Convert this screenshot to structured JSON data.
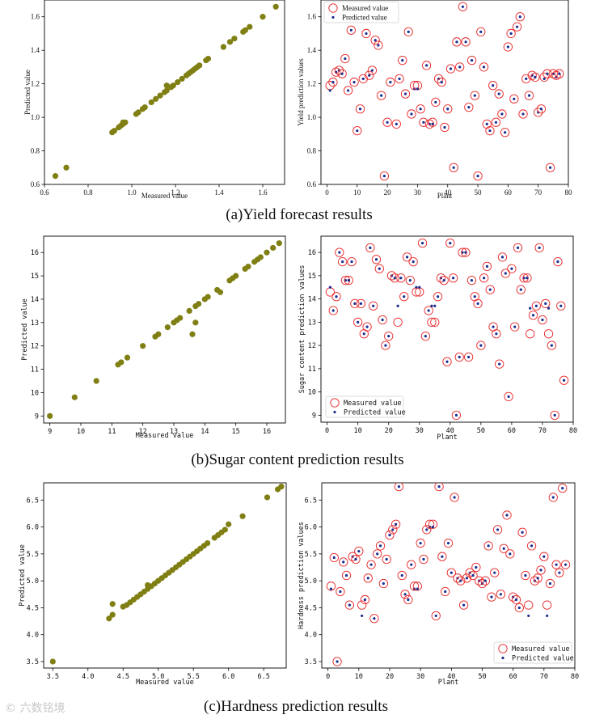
{
  "captions": {
    "a": "(a)Yield forecast results",
    "b": "(b)Sugar content prediction results",
    "c": "(c)Hardness prediction results"
  },
  "watermark": "© 六数铭境",
  "colors": {
    "scatter": "#7f7f14",
    "measured_ring": "#e8272a",
    "predicted_dot": "#1c2b8f",
    "frame": "#000000"
  },
  "chart_data": [
    {
      "id": "a-left",
      "type": "scatter",
      "title": "",
      "xlabel": "Measured value",
      "ylabel": "Predicted value",
      "xlim": [
        0.6,
        1.7
      ],
      "ylim": [
        0.6,
        1.7
      ],
      "xticks": [
        "0.6",
        "0.8",
        "1.0",
        "1.2",
        "1.4",
        "1.6"
      ],
      "yticks": [
        "0.6",
        "0.8",
        "1.0",
        "1.2",
        "1.4",
        "1.6"
      ],
      "points": [
        [
          0.65,
          0.65
        ],
        [
          0.7,
          0.7
        ],
        [
          0.91,
          0.91
        ],
        [
          0.92,
          0.92
        ],
        [
          0.94,
          0.94
        ],
        [
          0.95,
          0.95
        ],
        [
          0.96,
          0.96
        ],
        [
          0.96,
          0.97
        ],
        [
          0.97,
          0.97
        ],
        [
          1.02,
          1.02
        ],
        [
          1.03,
          1.03
        ],
        [
          1.05,
          1.05
        ],
        [
          1.06,
          1.06
        ],
        [
          1.09,
          1.09
        ],
        [
          1.11,
          1.11
        ],
        [
          1.13,
          1.13
        ],
        [
          1.15,
          1.15
        ],
        [
          1.16,
          1.16
        ],
        [
          1.16,
          1.19
        ],
        [
          1.18,
          1.18
        ],
        [
          1.19,
          1.19
        ],
        [
          1.21,
          1.21
        ],
        [
          1.23,
          1.23
        ],
        [
          1.25,
          1.25
        ],
        [
          1.26,
          1.26
        ],
        [
          1.27,
          1.27
        ],
        [
          1.28,
          1.28
        ],
        [
          1.29,
          1.29
        ],
        [
          1.3,
          1.3
        ],
        [
          1.31,
          1.31
        ],
        [
          1.34,
          1.34
        ],
        [
          1.35,
          1.35
        ],
        [
          1.42,
          1.42
        ],
        [
          1.45,
          1.45
        ],
        [
          1.47,
          1.47
        ],
        [
          1.51,
          1.51
        ],
        [
          1.52,
          1.52
        ],
        [
          1.54,
          1.54
        ],
        [
          1.6,
          1.6
        ],
        [
          1.66,
          1.66
        ]
      ]
    },
    {
      "id": "a-right",
      "type": "scatter",
      "title": "",
      "xlabel": "Plant",
      "ylabel": "Yield prediction values",
      "xlim": [
        -2,
        80
      ],
      "ylim": [
        0.6,
        1.7
      ],
      "xticks": [
        "0",
        "10",
        "20",
        "30",
        "40",
        "50",
        "60",
        "70",
        "80"
      ],
      "yticks": [
        "0.6",
        "0.8",
        "1.0",
        "1.2",
        "1.4",
        "1.6"
      ],
      "legend": [
        "Measured value",
        "Predicted value"
      ],
      "legend_position": "top-left",
      "x": [
        1,
        2,
        3,
        4,
        5,
        6,
        7,
        8,
        9,
        10,
        11,
        12,
        13,
        14,
        15,
        16,
        17,
        18,
        19,
        20,
        21,
        22,
        23,
        24,
        25,
        26,
        27,
        28,
        29,
        30,
        31,
        32,
        33,
        34,
        35,
        36,
        37,
        38,
        39,
        40,
        41,
        42,
        43,
        44,
        45,
        46,
        47,
        48,
        49,
        50,
        51,
        52,
        53,
        54,
        55,
        56,
        57,
        58,
        59,
        60,
        61,
        62,
        63,
        64,
        65,
        66,
        67,
        68,
        69,
        70,
        71,
        72,
        73,
        74,
        75,
        76,
        77
      ],
      "measured": [
        1.19,
        1.21,
        1.27,
        1.28,
        1.26,
        1.35,
        1.16,
        1.52,
        1.21,
        0.92,
        1.05,
        1.23,
        1.5,
        1.25,
        1.28,
        1.46,
        1.43,
        1.13,
        0.65,
        0.97,
        1.21,
        1.6,
        0.96,
        1.23,
        1.34,
        1.14,
        1.51,
        1.02,
        1.19,
        1.19,
        1.05,
        0.97,
        1.31,
        0.96,
        0.97,
        1.09,
        1.23,
        1.21,
        0.94,
        1.05,
        1.29,
        0.7,
        1.45,
        1.3,
        1.66,
        1.45,
        1.06,
        1.34,
        1.13,
        0.65,
        1.51,
        1.3,
        0.96,
        0.92,
        1.19,
        0.97,
        1.14,
        1.02,
        0.91,
        1.42,
        1.5,
        1.11,
        1.54,
        1.6,
        1.02,
        1.23,
        1.13,
        1.25,
        1.24,
        1.03,
        1.05,
        1.24,
        1.26,
        0.7,
        1.26,
        1.25,
        1.26
      ],
      "predicted": [
        1.16,
        1.21,
        1.27,
        1.28,
        1.26,
        1.35,
        1.16,
        1.52,
        1.21,
        0.92,
        1.05,
        1.23,
        1.5,
        1.25,
        1.28,
        1.46,
        1.43,
        1.13,
        0.65,
        0.97,
        1.21,
        1.6,
        0.96,
        1.23,
        1.34,
        1.14,
        1.51,
        1.02,
        1.17,
        1.17,
        1.05,
        0.97,
        1.31,
        0.96,
        0.96,
        1.09,
        1.23,
        1.21,
        0.94,
        1.05,
        1.29,
        0.7,
        1.45,
        1.3,
        1.66,
        1.45,
        1.06,
        1.34,
        1.13,
        0.65,
        1.51,
        1.3,
        0.96,
        0.92,
        1.19,
        0.97,
        1.14,
        1.02,
        0.91,
        1.42,
        1.5,
        1.11,
        1.54,
        1.6,
        1.02,
        1.23,
        1.13,
        1.25,
        1.24,
        1.03,
        1.05,
        1.23,
        1.26,
        0.7,
        1.26,
        1.24,
        1.26
      ]
    },
    {
      "id": "b-left",
      "type": "scatter",
      "title": "",
      "xlabel": "Measured value",
      "ylabel": "Predicted value",
      "xlim": [
        8.8,
        16.6
      ],
      "ylim": [
        8.7,
        16.7
      ],
      "xticks": [
        "9",
        "10",
        "11",
        "12",
        "13",
        "14",
        "15",
        "16"
      ],
      "yticks": [
        "9",
        "10",
        "11",
        "12",
        "13",
        "14",
        "15",
        "16"
      ],
      "points": [
        [
          9.0,
          9.0
        ],
        [
          9.8,
          9.8
        ],
        [
          10.5,
          10.5
        ],
        [
          11.2,
          11.2
        ],
        [
          11.3,
          11.3
        ],
        [
          11.5,
          11.5
        ],
        [
          12.0,
          12.0
        ],
        [
          12.4,
          12.4
        ],
        [
          12.5,
          12.5
        ],
        [
          12.8,
          12.8
        ],
        [
          13.0,
          13.0
        ],
        [
          13.1,
          13.1
        ],
        [
          13.2,
          13.2
        ],
        [
          13.5,
          13.5
        ],
        [
          13.6,
          12.5
        ],
        [
          13.7,
          13.0
        ],
        [
          13.7,
          13.7
        ],
        [
          13.8,
          13.8
        ],
        [
          14.0,
          14.0
        ],
        [
          14.1,
          14.1
        ],
        [
          14.4,
          14.4
        ],
        [
          14.5,
          14.3
        ],
        [
          14.8,
          14.8
        ],
        [
          14.9,
          14.9
        ],
        [
          15.0,
          15.0
        ],
        [
          15.3,
          15.3
        ],
        [
          15.4,
          15.4
        ],
        [
          15.6,
          15.6
        ],
        [
          15.7,
          15.7
        ],
        [
          15.8,
          15.8
        ],
        [
          16.0,
          16.0
        ],
        [
          16.2,
          16.2
        ],
        [
          16.4,
          16.4
        ]
      ]
    },
    {
      "id": "b-right",
      "type": "scatter",
      "title": "",
      "xlabel": "Plant",
      "ylabel": "Sugar content prediction values",
      "xlim": [
        -2,
        80
      ],
      "ylim": [
        8.7,
        16.7
      ],
      "xticks": [
        "0",
        "10",
        "20",
        "30",
        "40",
        "50",
        "60",
        "70",
        "80"
      ],
      "yticks": [
        "9",
        "10",
        "11",
        "12",
        "13",
        "14",
        "15",
        "16"
      ],
      "legend": [
        "Measured value",
        "Predicted value"
      ],
      "legend_position": "bottom-left",
      "x": [
        1,
        2,
        3,
        4,
        5,
        6,
        7,
        8,
        9,
        10,
        11,
        12,
        13,
        14,
        15,
        16,
        17,
        18,
        19,
        20,
        21,
        22,
        23,
        24,
        25,
        26,
        27,
        28,
        29,
        30,
        31,
        32,
        33,
        34,
        35,
        36,
        37,
        38,
        39,
        40,
        41,
        42,
        43,
        44,
        45,
        46,
        47,
        48,
        49,
        50,
        51,
        52,
        53,
        54,
        55,
        56,
        57,
        58,
        59,
        60,
        61,
        62,
        63,
        64,
        65,
        66,
        67,
        68,
        69,
        70,
        71,
        72,
        73,
        74,
        75,
        76,
        77
      ],
      "measured": [
        14.3,
        13.5,
        14.1,
        16.0,
        15.6,
        14.8,
        14.8,
        15.6,
        13.8,
        13.0,
        13.8,
        12.5,
        12.8,
        16.2,
        13.7,
        15.7,
        15.3,
        13.1,
        12.0,
        12.4,
        15.0,
        14.9,
        13.0,
        14.9,
        14.1,
        15.8,
        14.8,
        15.6,
        14.3,
        14.3,
        16.4,
        12.4,
        13.5,
        13.0,
        13.0,
        14.1,
        14.9,
        14.8,
        11.3,
        16.4,
        14.9,
        9.0,
        11.5,
        16.0,
        16.0,
        11.5,
        14.8,
        14.1,
        13.8,
        12.0,
        14.9,
        15.4,
        14.4,
        12.8,
        12.5,
        11.2,
        15.8,
        15.1,
        9.8,
        15.3,
        12.8,
        16.2,
        14.4,
        14.9,
        14.9,
        12.5,
        13.3,
        13.7,
        16.2,
        13.1,
        13.8,
        12.5,
        12.0,
        9.0,
        15.6,
        13.7,
        10.5
      ],
      "predicted": [
        14.5,
        13.5,
        14.1,
        16.0,
        15.6,
        14.8,
        14.8,
        15.6,
        13.8,
        13.0,
        13.8,
        12.5,
        12.8,
        16.2,
        13.7,
        15.7,
        15.3,
        13.1,
        12.0,
        12.4,
        15.0,
        14.9,
        13.7,
        14.9,
        14.1,
        15.8,
        14.8,
        15.6,
        14.5,
        14.5,
        16.4,
        12.4,
        13.5,
        13.7,
        13.7,
        14.1,
        14.9,
        14.8,
        11.3,
        16.4,
        14.9,
        9.0,
        11.5,
        16.0,
        16.0,
        11.5,
        14.8,
        14.1,
        13.8,
        12.0,
        14.9,
        15.4,
        14.4,
        12.8,
        12.5,
        11.2,
        15.8,
        15.1,
        9.8,
        15.3,
        12.8,
        16.2,
        14.4,
        14.9,
        14.9,
        13.6,
        13.3,
        13.7,
        16.2,
        13.1,
        13.8,
        13.6,
        12.0,
        9.0,
        15.6,
        13.7,
        10.5
      ]
    },
    {
      "id": "c-left",
      "type": "scatter",
      "title": "",
      "xlabel": "Measured value",
      "ylabel": "Predicted value",
      "xlim": [
        3.37,
        6.82
      ],
      "ylim": [
        3.38,
        6.82
      ],
      "xticks": [
        "3.5",
        "4.0",
        "4.5",
        "5.0",
        "5.5",
        "6.0",
        "6.5"
      ],
      "yticks": [
        "3.5",
        "4.0",
        "4.5",
        "5.0",
        "5.5",
        "6.0",
        "6.5"
      ],
      "points": [
        [
          3.5,
          3.5
        ],
        [
          4.3,
          4.3
        ],
        [
          4.35,
          4.37
        ],
        [
          4.35,
          4.57
        ],
        [
          4.5,
          4.52
        ],
        [
          4.55,
          4.55
        ],
        [
          4.6,
          4.6
        ],
        [
          4.65,
          4.65
        ],
        [
          4.7,
          4.7
        ],
        [
          4.75,
          4.75
        ],
        [
          4.8,
          4.8
        ],
        [
          4.85,
          4.85
        ],
        [
          4.85,
          4.92
        ],
        [
          4.9,
          4.9
        ],
        [
          4.95,
          4.95
        ],
        [
          5.0,
          5.0
        ],
        [
          5.05,
          5.05
        ],
        [
          5.1,
          5.1
        ],
        [
          5.15,
          5.15
        ],
        [
          5.2,
          5.2
        ],
        [
          5.25,
          5.25
        ],
        [
          5.3,
          5.3
        ],
        [
          5.35,
          5.35
        ],
        [
          5.4,
          5.4
        ],
        [
          5.45,
          5.45
        ],
        [
          5.5,
          5.5
        ],
        [
          5.55,
          5.55
        ],
        [
          5.6,
          5.6
        ],
        [
          5.65,
          5.65
        ],
        [
          5.7,
          5.7
        ],
        [
          5.8,
          5.8
        ],
        [
          5.85,
          5.85
        ],
        [
          5.9,
          5.9
        ],
        [
          5.95,
          5.95
        ],
        [
          6.0,
          6.05
        ],
        [
          6.2,
          6.2
        ],
        [
          6.55,
          6.55
        ],
        [
          6.7,
          6.7
        ],
        [
          6.75,
          6.75
        ]
      ]
    },
    {
      "id": "c-right",
      "type": "scatter",
      "title": "",
      "xlabel": "Plant",
      "ylabel": "Hardness prediction values",
      "xlim": [
        -2,
        80
      ],
      "ylim": [
        3.38,
        6.82
      ],
      "xticks": [
        "0",
        "10",
        "20",
        "30",
        "40",
        "50",
        "60",
        "70",
        "80"
      ],
      "yticks": [
        "3.5",
        "4.0",
        "4.5",
        "5.0",
        "5.5",
        "6.0",
        "6.5"
      ],
      "legend": [
        "Measured value",
        "Predicted value"
      ],
      "legend_position": "bottom-right",
      "x": [
        1,
        2,
        3,
        4,
        5,
        6,
        7,
        8,
        9,
        10,
        11,
        12,
        13,
        14,
        15,
        16,
        17,
        18,
        19,
        20,
        21,
        22,
        23,
        24,
        25,
        26,
        27,
        28,
        29,
        30,
        31,
        32,
        33,
        34,
        35,
        36,
        37,
        38,
        39,
        40,
        41,
        42,
        43,
        44,
        45,
        46,
        47,
        48,
        49,
        50,
        51,
        52,
        53,
        54,
        55,
        56,
        57,
        58,
        59,
        60,
        61,
        62,
        63,
        64,
        65,
        66,
        67,
        68,
        69,
        70,
        71,
        72,
        73,
        74,
        75,
        76,
        77
      ],
      "measured": [
        4.9,
        5.43,
        3.5,
        4.8,
        5.35,
        5.1,
        4.55,
        5.45,
        5.4,
        5.55,
        4.55,
        4.65,
        5.05,
        5.3,
        4.3,
        5.5,
        5.65,
        4.95,
        5.4,
        5.85,
        5.95,
        6.05,
        6.75,
        5.1,
        4.75,
        4.65,
        5.3,
        4.9,
        4.9,
        5.7,
        5.4,
        5.95,
        6.05,
        6.05,
        4.35,
        6.75,
        5.45,
        4.8,
        5.7,
        5.15,
        6.55,
        5.05,
        5.0,
        4.55,
        5.05,
        5.15,
        5.1,
        5.25,
        5.0,
        4.95,
        5.0,
        5.65,
        4.7,
        5.15,
        5.95,
        4.75,
        5.6,
        6.22,
        5.5,
        4.7,
        4.65,
        4.5,
        5.9,
        5.1,
        4.55,
        5.65,
        5.0,
        5.05,
        5.2,
        5.45,
        4.55,
        4.95,
        6.55,
        5.3,
        5.15,
        6.72,
        5.3
      ],
      "predicted": [
        4.85,
        5.43,
        3.5,
        4.8,
        5.35,
        5.1,
        4.55,
        5.45,
        5.4,
        5.55,
        4.35,
        4.65,
        5.05,
        5.3,
        4.3,
        5.5,
        5.65,
        4.95,
        5.4,
        5.85,
        5.95,
        6.05,
        6.75,
        5.1,
        4.75,
        4.65,
        5.3,
        4.85,
        4.85,
        5.7,
        5.4,
        5.95,
        6.0,
        6.0,
        4.35,
        6.75,
        5.45,
        4.8,
        5.7,
        5.15,
        6.55,
        5.05,
        5.0,
        4.55,
        5.05,
        5.15,
        5.1,
        5.25,
        5.0,
        4.95,
        5.0,
        5.65,
        4.7,
        5.15,
        5.95,
        4.75,
        5.6,
        6.22,
        5.5,
        4.7,
        4.65,
        4.5,
        5.9,
        5.1,
        4.35,
        5.65,
        5.0,
        5.05,
        5.2,
        5.45,
        4.35,
        4.95,
        6.55,
        5.3,
        5.15,
        6.72,
        5.3
      ]
    }
  ]
}
